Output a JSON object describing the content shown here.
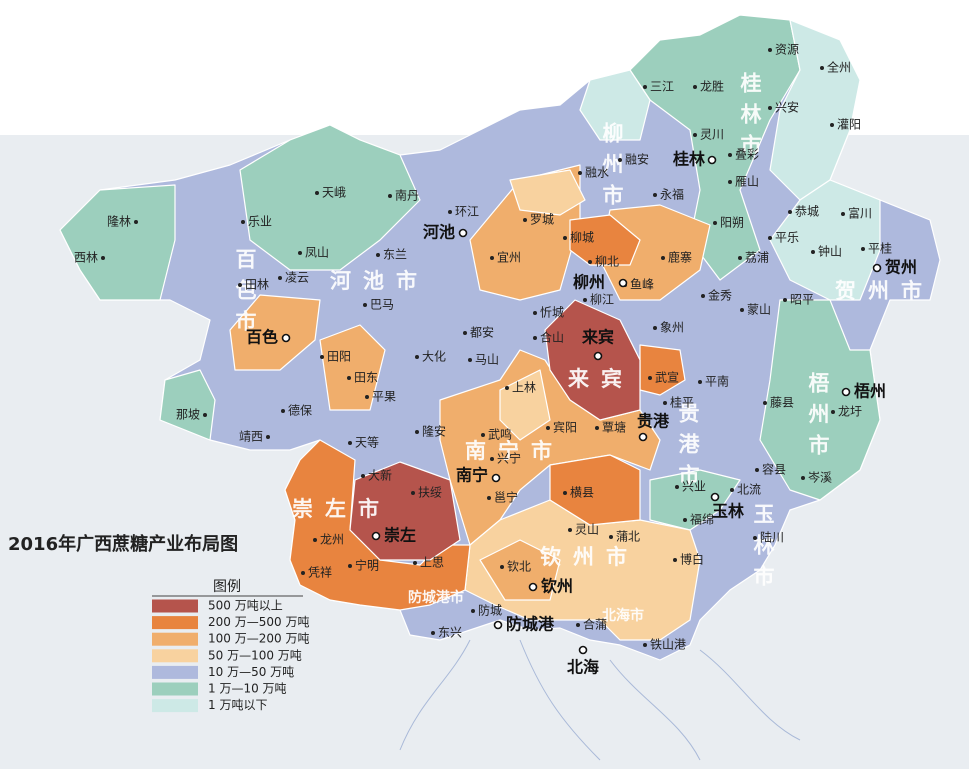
{
  "title": "2016年广西蔗糖产业布局图",
  "legend": {
    "title": "图例",
    "items": [
      {
        "label": "500 万吨以上",
        "color": "#b5544c"
      },
      {
        "label": "200 万—500 万吨",
        "color": "#e8843f"
      },
      {
        "label": "100 万—200 万吨",
        "color": "#f0ae6c"
      },
      {
        "label": "50 万—100 万吨",
        "color": "#f8d29f"
      },
      {
        "label": "10 万—50 万吨",
        "color": "#aeb9dd"
      },
      {
        "label": "1 万—10 万吨",
        "color": "#9ccfbd"
      },
      {
        "label": "1 万吨以下",
        "color": "#cde9e6"
      }
    ]
  },
  "prefectures": [
    "桂林市",
    "柳州市",
    "河池市",
    "百色市",
    "来宾",
    "贺州市",
    "梧州市",
    "贵港市",
    "南宁市",
    "崇左市",
    "钦州市",
    "玉林市",
    "防城港市",
    "北海市"
  ],
  "cities": [
    "河池",
    "百色",
    "柳州",
    "来宾",
    "桂林",
    "贺州",
    "梧州",
    "贵港",
    "南宁",
    "崇左",
    "玉林",
    "钦州",
    "防城港",
    "北海"
  ],
  "counties": [
    "资源",
    "全州",
    "三江",
    "龙胜",
    "兴安",
    "灌阳",
    "灵川",
    "叠彩",
    "融安",
    "融水",
    "雁山",
    "永福",
    "罗城",
    "恭城",
    "富川",
    "环江",
    "天峨",
    "南丹",
    "隆林",
    "乐业",
    "阳朔",
    "平乐",
    "钟山",
    "平桂",
    "柳城",
    "鹿寨",
    "凤山",
    "东兰",
    "西林",
    "宜州",
    "柳北",
    "荔浦",
    "凌云",
    "田林",
    "鱼峰",
    "柳江",
    "金秀",
    "巴马",
    "昭平",
    "蒙山",
    "忻城",
    "都安",
    "象州",
    "合山",
    "田阳",
    "大化",
    "马山",
    "武宣",
    "田东",
    "平南",
    "上林",
    "平果",
    "那坡",
    "德保",
    "桂平",
    "藤县",
    "龙圩",
    "宾阳",
    "覃塘",
    "靖西",
    "隆安",
    "武鸣",
    "天等",
    "兴宁",
    "容县",
    "岑溪",
    "大新",
    "兴业",
    "北流",
    "邕宁",
    "横县",
    "扶绥",
    "福绵",
    "灵山",
    "蒲北",
    "陆川",
    "龙州",
    "博白",
    "宁明",
    "凭祥",
    "上思",
    "钦北",
    "防城",
    "合蒲",
    "东兴",
    "铁山港"
  ]
}
